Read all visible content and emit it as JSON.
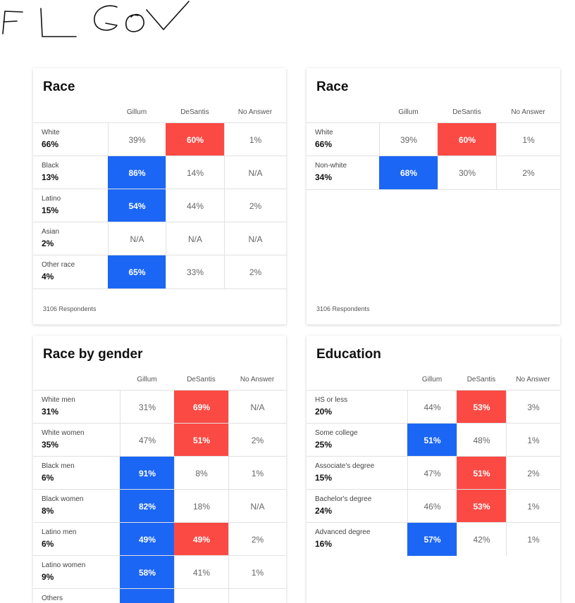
{
  "handwriting": {
    "text": "FL GOV"
  },
  "columns": [
    "Gillum",
    "DeSantis",
    "No Answer"
  ],
  "colors": {
    "gillum": "#1b66f5",
    "desantis": "#fb4a44"
  },
  "cards": [
    {
      "title": "Race",
      "footnote": "3106 Respondents",
      "rows": [
        {
          "name": "White",
          "share": "66%",
          "values": [
            "39%",
            "60%",
            "1%"
          ],
          "winner": "desantis"
        },
        {
          "name": "Black",
          "share": "13%",
          "values": [
            "86%",
            "14%",
            "N/A"
          ],
          "winner": "gillum"
        },
        {
          "name": "Latino",
          "share": "15%",
          "values": [
            "54%",
            "44%",
            "2%"
          ],
          "winner": "gillum"
        },
        {
          "name": "Asian",
          "share": "2%",
          "values": [
            "N/A",
            "N/A",
            "N/A"
          ],
          "winner": ""
        },
        {
          "name": "Other race",
          "share": "4%",
          "values": [
            "65%",
            "33%",
            "2%"
          ],
          "winner": "gillum"
        }
      ]
    },
    {
      "title": "Race",
      "footnote": "3106 Respondents",
      "rows": [
        {
          "name": "White",
          "share": "66%",
          "values": [
            "39%",
            "60%",
            "1%"
          ],
          "winner": "desantis"
        },
        {
          "name": "Non-white",
          "share": "34%",
          "values": [
            "68%",
            "30%",
            "2%"
          ],
          "winner": "gillum"
        }
      ]
    },
    {
      "title": "Race by gender",
      "footnote": "",
      "rows": [
        {
          "name": "White men",
          "share": "31%",
          "values": [
            "31%",
            "69%",
            "N/A"
          ],
          "winner": "desantis"
        },
        {
          "name": "White women",
          "share": "35%",
          "values": [
            "47%",
            "51%",
            "2%"
          ],
          "winner": "desantis"
        },
        {
          "name": "Black men",
          "share": "6%",
          "values": [
            "91%",
            "8%",
            "1%"
          ],
          "winner": "gillum"
        },
        {
          "name": "Black women",
          "share": "8%",
          "values": [
            "82%",
            "18%",
            "N/A"
          ],
          "winner": "gillum"
        },
        {
          "name": "Latino men",
          "share": "6%",
          "values": [
            "49%",
            "49%",
            "2%"
          ],
          "winner": "both"
        },
        {
          "name": "Latino women",
          "share": "9%",
          "values": [
            "58%",
            "41%",
            "1%"
          ],
          "winner": "gillum"
        },
        {
          "name": "Others",
          "share": "",
          "values": [
            "",
            "",
            ""
          ],
          "winner": "gillum"
        }
      ]
    },
    {
      "title": "Education",
      "footnote": "",
      "rows": [
        {
          "name": "HS or less",
          "share": "20%",
          "values": [
            "44%",
            "53%",
            "3%"
          ],
          "winner": "desantis"
        },
        {
          "name": "Some college",
          "share": "25%",
          "values": [
            "51%",
            "48%",
            "1%"
          ],
          "winner": "gillum"
        },
        {
          "name": "Associate's degree",
          "share": "15%",
          "values": [
            "47%",
            "51%",
            "2%"
          ],
          "winner": "desantis"
        },
        {
          "name": "Bachelor's degree",
          "share": "24%",
          "values": [
            "46%",
            "53%",
            "1%"
          ],
          "winner": "desantis"
        },
        {
          "name": "Advanced degree",
          "share": "16%",
          "values": [
            "57%",
            "42%",
            "1%"
          ],
          "winner": "gillum"
        }
      ]
    }
  ]
}
